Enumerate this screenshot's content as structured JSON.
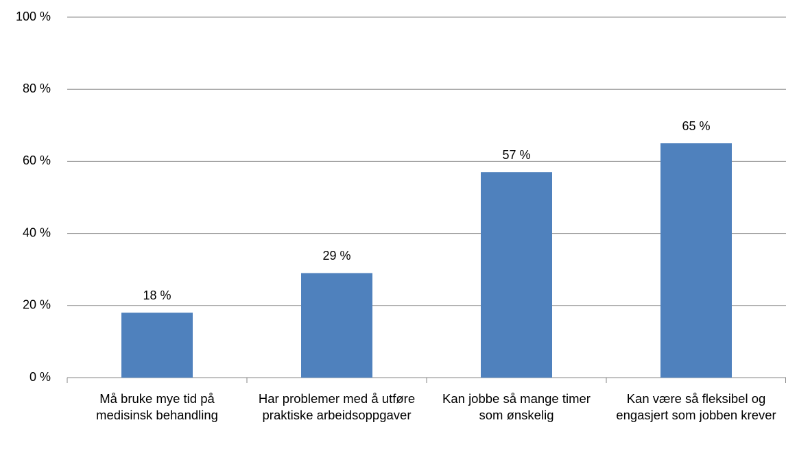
{
  "chart_data": {
    "type": "bar",
    "categories": [
      "Må bruke mye tid på medisinsk behandling",
      "Har problemer med å utføre praktiske arbeidsoppgaver",
      "Kan jobbe så mange timer som ønskelig",
      "Kan være så fleksibel og engasjert som jobben krever"
    ],
    "values": [
      18,
      29,
      57,
      65
    ],
    "value_labels": [
      "18 %",
      "29 %",
      "57 %",
      "65 %"
    ],
    "color": "#4f81bd",
    "ylim": [
      0,
      100
    ],
    "yticks": [
      {
        "value": 0,
        "label": "0 %"
      },
      {
        "value": 20,
        "label": "20 %"
      },
      {
        "value": 40,
        "label": "40 %"
      },
      {
        "value": 60,
        "label": "60 %"
      },
      {
        "value": 80,
        "label": "80 %"
      },
      {
        "value": 100,
        "label": "100 %"
      }
    ],
    "grid": true
  }
}
